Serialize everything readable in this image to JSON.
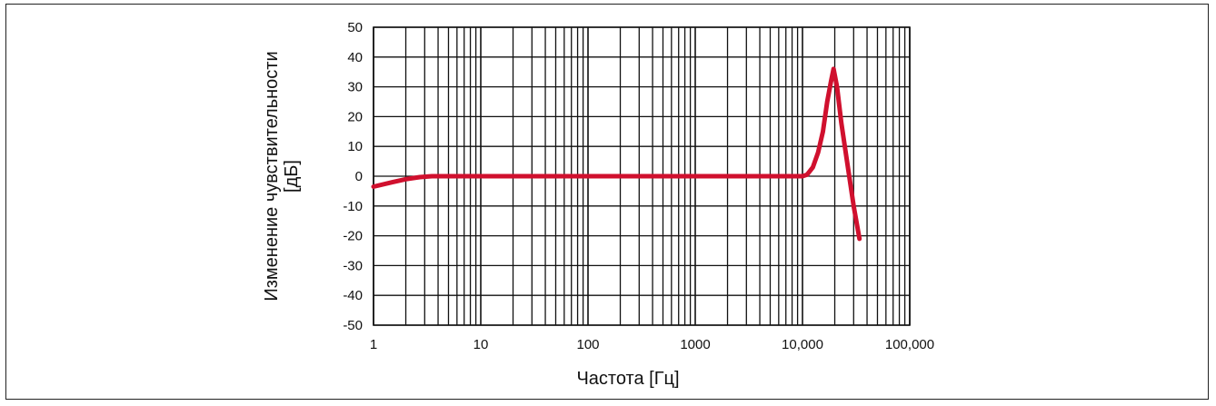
{
  "chart_data": {
    "type": "line",
    "title": "",
    "xlabel": "Частота [Гц]",
    "ylabel_line1": "Изменение чувствительности",
    "ylabel_line2": "[дБ]",
    "x_scale": "log",
    "xlim": [
      1,
      100000
    ],
    "ylim": [
      -50,
      50
    ],
    "grid": true,
    "x_tick_labels": [
      "1",
      "10",
      "100",
      "1000",
      "10,000",
      "100,000"
    ],
    "y_tick_values": [
      50,
      40,
      30,
      20,
      10,
      0,
      -10,
      -20,
      -30,
      -40,
      -50
    ],
    "series": [
      {
        "color": "#d0102e",
        "x": [
          1,
          1.5,
          2,
          2.7,
          3.5,
          5,
          10,
          100,
          1000,
          10000,
          11000,
          12500,
          14000,
          15500,
          17000,
          18500,
          19500,
          21000,
          23000,
          26000,
          30000,
          34000
        ],
        "y": [
          -3.5,
          -2,
          -1,
          -0.3,
          0,
          0,
          0,
          0,
          0,
          0,
          0.5,
          3,
          8,
          15,
          25,
          32,
          36,
          30,
          18,
          5,
          -10,
          -21
        ]
      }
    ]
  }
}
